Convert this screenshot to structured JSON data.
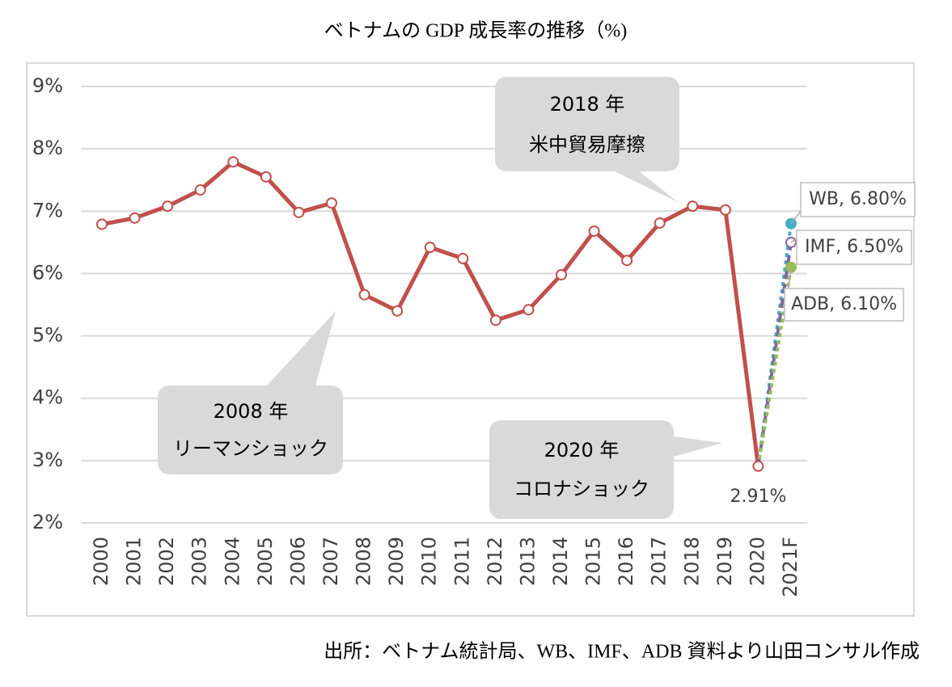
{
  "chart_data": {
    "type": "line",
    "title": "ベトナムの GDP 成長率の推移（%)",
    "source": "出所：ベトナム統計局、WB、IMF、ADB 資料より山田コンサル作成",
    "categories": [
      "2000",
      "2001",
      "2002",
      "2003",
      "2004",
      "2005",
      "2006",
      "2007",
      "2008",
      "2009",
      "2010",
      "2011",
      "2012",
      "2013",
      "2014",
      "2015",
      "2016",
      "2017",
      "2018",
      "2019",
      "2020",
      "2021F"
    ],
    "ylim": [
      2,
      9
    ],
    "yticks": [
      {
        "value": 2,
        "label": "2%"
      },
      {
        "value": 3,
        "label": "3%"
      },
      {
        "value": 4,
        "label": "4%"
      },
      {
        "value": 5,
        "label": "5%"
      },
      {
        "value": 6,
        "label": "6%"
      },
      {
        "value": 7,
        "label": "7%"
      },
      {
        "value": 8,
        "label": "8%"
      },
      {
        "value": 9,
        "label": "9%"
      }
    ],
    "grid": true,
    "series": [
      {
        "color": "#c0504d",
        "marker": "hollow",
        "style": "solid",
        "values": [
          6.79,
          6.89,
          7.08,
          7.34,
          7.79,
          7.55,
          6.98,
          7.13,
          5.66,
          5.4,
          6.42,
          6.24,
          5.25,
          5.42,
          5.98,
          6.68,
          6.21,
          6.81,
          7.08,
          7.02,
          2.91,
          null
        ],
        "value_labels": [
          null,
          null,
          null,
          null,
          null,
          null,
          null,
          null,
          null,
          null,
          null,
          null,
          null,
          null,
          null,
          null,
          null,
          null,
          null,
          null,
          "2.91%",
          null
        ]
      },
      {
        "name": "WB",
        "color": "#4bacc6",
        "marker": "filled",
        "style": "dotted",
        "values": [
          null,
          null,
          null,
          null,
          null,
          null,
          null,
          null,
          null,
          null,
          null,
          null,
          null,
          null,
          null,
          null,
          null,
          null,
          null,
          null,
          2.91,
          6.8
        ],
        "value_labels": [
          null,
          null,
          null,
          null,
          null,
          null,
          null,
          null,
          null,
          null,
          null,
          null,
          null,
          null,
          null,
          null,
          null,
          null,
          null,
          null,
          null,
          "WB, 6.80%"
        ]
      },
      {
        "name": "IMF",
        "color": "#8064a2",
        "marker": "hollow",
        "style": "dashed",
        "values": [
          null,
          null,
          null,
          null,
          null,
          null,
          null,
          null,
          null,
          null,
          null,
          null,
          null,
          null,
          null,
          null,
          null,
          null,
          null,
          null,
          2.91,
          6.5
        ],
        "value_labels": [
          null,
          null,
          null,
          null,
          null,
          null,
          null,
          null,
          null,
          null,
          null,
          null,
          null,
          null,
          null,
          null,
          null,
          null,
          null,
          null,
          null,
          "IMF, 6.50%"
        ]
      },
      {
        "name": "ADB",
        "color": "#9bbb59",
        "marker": "filled",
        "style": "dotted",
        "values": [
          null,
          null,
          null,
          null,
          null,
          null,
          null,
          null,
          null,
          null,
          null,
          null,
          null,
          null,
          null,
          null,
          null,
          null,
          null,
          null,
          2.91,
          6.1
        ],
        "value_labels": [
          null,
          null,
          null,
          null,
          null,
          null,
          null,
          null,
          null,
          null,
          null,
          null,
          null,
          null,
          null,
          null,
          null,
          null,
          null,
          null,
          null,
          "ADB, 6.10%"
        ]
      }
    ],
    "annotations": [
      {
        "lines": [
          "2018 年",
          "米中貿易摩擦"
        ]
      },
      {
        "lines": [
          "2008 年",
          "リーマンショック"
        ]
      },
      {
        "lines": [
          "2020 年",
          "コロナショック"
        ]
      }
    ]
  }
}
